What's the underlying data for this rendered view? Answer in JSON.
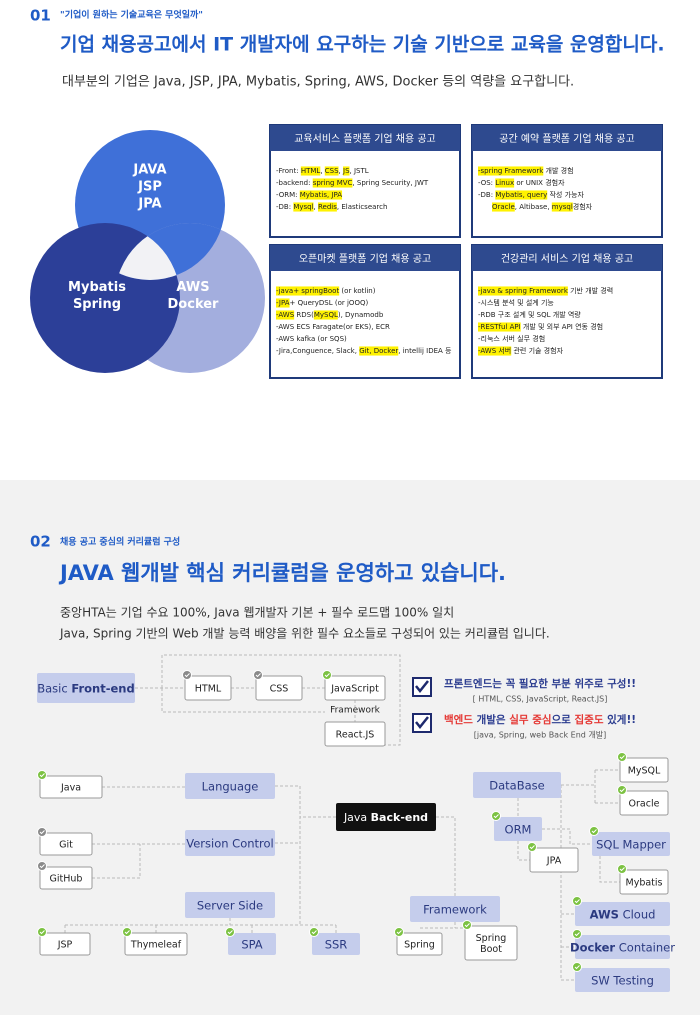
{
  "section1": {
    "number": "01",
    "subtitle": "\"기업이 원하는 기술교육은 무엇일까\"",
    "title": "기업 채용공고에서 IT 개발자에 요구하는 기술 기반으로 교육을 운영합니다.",
    "description": "대부분의 기업은 Java, JSP, JPA, Mybatis, Spring, AWS, Docker 등의 역량을 요구합니다.",
    "venn": [
      [
        "JAVA",
        "JSP",
        "JPA"
      ],
      [
        "Mybatis",
        "Spring"
      ],
      [
        "AWS",
        "Docker"
      ]
    ],
    "postings": [
      {
        "title": "교육서비스 플랫폼 기업 채용 공고",
        "lines": [
          [
            {
              "text": "-Front: "
            },
            {
              "text": "HTML",
              "highlight": true
            },
            {
              "text": ", "
            },
            {
              "text": "CSS",
              "highlight": true
            },
            {
              "text": ", "
            },
            {
              "text": "JS",
              "highlight": true
            },
            {
              "text": ", JSTL"
            }
          ],
          [
            {
              "text": "-backend: "
            },
            {
              "text": "spring MVC",
              "highlight": true
            },
            {
              "text": ", Spring Security, JWT"
            }
          ],
          [
            {
              "text": "-ORM: "
            },
            {
              "text": "Mybatis, JPA",
              "highlight": true
            }
          ],
          [
            {
              "text": "-DB: "
            },
            {
              "text": "Mysql",
              "highlight": true
            },
            {
              "text": ", "
            },
            {
              "text": "Redis",
              "highlight": true
            },
            {
              "text": ", Elasticsearch"
            }
          ]
        ]
      },
      {
        "title": "공간 예약 플랫폼 기업 채용 공고",
        "lines": [
          [
            {
              "text": "-spring Framework",
              "highlight": true
            },
            {
              "text": " 개발 경험"
            }
          ],
          [
            {
              "text": "-OS: "
            },
            {
              "text": "Linux",
              "highlight": true
            },
            {
              "text": " or UNIX 경험자"
            }
          ],
          [
            {
              "text": "-DB: "
            },
            {
              "text": "Mybatis, query",
              "highlight": true
            },
            {
              "text": " 작성 가능자"
            }
          ],
          [
            {
              "text": "Oracle",
              "highlight": true
            },
            {
              "text": ", Altibase, "
            },
            {
              "text": "mysql",
              "highlight": true
            },
            {
              "text": "경험자"
            }
          ]
        ]
      },
      {
        "title": "오픈마켓 플랫폼 기업 채용 공고",
        "lines": [
          [
            {
              "text": "-java+ springBoot",
              "highlight": true
            },
            {
              "text": " (or kotlin)"
            }
          ],
          [
            {
              "text": "-JPA",
              "highlight": true
            },
            {
              "text": "+ QueryDSL (or jOOQ)"
            }
          ],
          [
            {
              "text": "-AWS",
              "highlight": true
            },
            {
              "text": " RDS("
            },
            {
              "text": "MySQL",
              "highlight": true
            },
            {
              "text": "), Dynamodb"
            }
          ],
          [
            {
              "text": "-AWS ECS Faragate(or EKS), ECR"
            }
          ],
          [
            {
              "text": "-AWS kafka (or SQS)"
            }
          ],
          [
            {
              "text": "-Jira,Conguence, Slack, "
            },
            {
              "text": "Git, Docker",
              "highlight": true
            },
            {
              "text": ", intellij IDEA 등"
            }
          ]
        ]
      },
      {
        "title": "건강관리 서비스 기업 채용 공고",
        "lines": [
          [
            {
              "text": "-java & spring Framework",
              "highlight": true
            },
            {
              "text": " 기반 개발 경력"
            }
          ],
          [
            {
              "text": "-시스템 분석 및 설계 기능"
            }
          ],
          [
            {
              "text": "-RDB 구조 설계 및 SQL 개발 역량"
            }
          ],
          [
            {
              "text": "-RESTful API",
              "highlight": true
            },
            {
              "text": " 개발 및 외부 API 연동 경험"
            }
          ],
          [
            {
              "text": "-리눅스 서버 실무 경험"
            }
          ],
          [
            {
              "text": "-AWS 서버",
              "highlight": true
            },
            {
              "text": " 관련 기술 경험자"
            }
          ]
        ]
      }
    ]
  },
  "section2": {
    "number": "02",
    "subtitle": "채용 공고 중심의 커리큘럼 구성",
    "title": "JAVA 웹개발 핵심 커리큘럼을 운영하고 있습니다.",
    "description": [
      "중앙HTA는 기업 수요 100%, Java 웹개발자 기본 + 필수 로드맵 100% 일치",
      "Java, Spring 기반의 Web 개발 능력 배양을 위한 필수 요소들로 구성되어 있는 커리큘럼 입니다."
    ],
    "notes": [
      {
        "text": [
          {
            "text": "프론트엔드는 꼭 필요한 부분 위주로 구성!!"
          }
        ],
        "detail": "[ HTML, CSS, JavaScript, React.JS]"
      },
      {
        "text": [
          {
            "text": "백엔드",
            "color": "#e53935"
          },
          {
            "text": " 개발은 "
          },
          {
            "text": "실무 중심",
            "color": "#e53935"
          },
          {
            "text": "으로 "
          },
          {
            "text": "집중도",
            "color": "#e53935"
          },
          {
            "text": " 있게!!"
          }
        ],
        "detail": "[java, Spring, web Back End 개발]"
      }
    ],
    "frontend_framework": "Framework",
    "nodes": [
      {
        "parts": [
          {
            "text": "Basic "
          },
          {
            "text": "Front-end",
            "bold": true
          }
        ]
      },
      {
        "label": "HTML"
      },
      {
        "label": "CSS"
      },
      {
        "label": "JavaScript"
      },
      {
        "label": "React.JS"
      },
      {
        "parts": [
          {
            "text": "Java "
          },
          {
            "text": "Back-end",
            "bold": true
          }
        ]
      },
      {
        "label": "Language"
      },
      {
        "label": "Java"
      },
      {
        "label": "Version Control"
      },
      {
        "label": "Git"
      },
      {
        "label": "GitHub"
      },
      {
        "label": "Server Side"
      },
      {
        "label": "JSP"
      },
      {
        "label": "Thymeleaf"
      },
      {
        "label": "SPA"
      },
      {
        "label": "SSR"
      },
      {
        "label": "Framework"
      },
      {
        "label": "Spring"
      },
      {
        "lines": [
          "Spring",
          "Boot"
        ]
      },
      {
        "label": "DataBase"
      },
      {
        "label": "MySQL"
      },
      {
        "label": "Oracle"
      },
      {
        "label": "ORM"
      },
      {
        "label": "JPA"
      },
      {
        "label": "SQL Mapper"
      },
      {
        "label": "Mybatis"
      },
      {
        "parts": [
          {
            "text": "AWS",
            "bold": true
          },
          {
            "text": " Cloud"
          }
        ]
      },
      {
        "parts": [
          {
            "text": "Docker",
            "bold": true
          },
          {
            "text": " Container"
          }
        ]
      },
      {
        "label": "SW Testing"
      }
    ]
  }
}
